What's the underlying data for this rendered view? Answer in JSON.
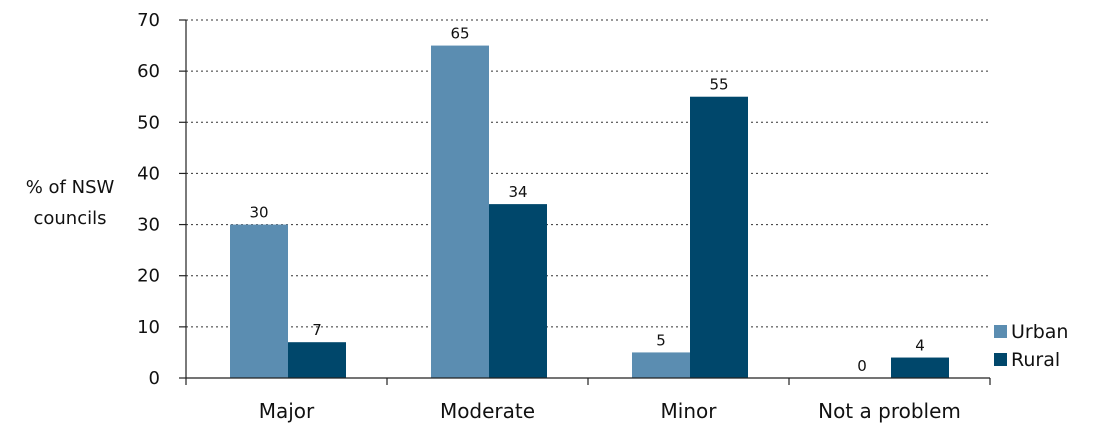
{
  "chart_data": {
    "type": "bar",
    "ylabel": [
      "% of NSW",
      "councils"
    ],
    "ylim": [
      0,
      70
    ],
    "yticks": [
      0,
      10,
      20,
      30,
      40,
      50,
      60,
      70
    ],
    "grid": true,
    "legend_position": "right",
    "categories": [
      "Major",
      "Moderate",
      "Minor",
      "Not a problem"
    ],
    "series": [
      {
        "name": "Urban",
        "values": [
          30,
          65,
          5,
          0
        ],
        "color": "#5b8db1"
      },
      {
        "name": "Rural",
        "values": [
          7,
          34,
          55,
          4
        ],
        "color": "#00476b"
      }
    ]
  }
}
